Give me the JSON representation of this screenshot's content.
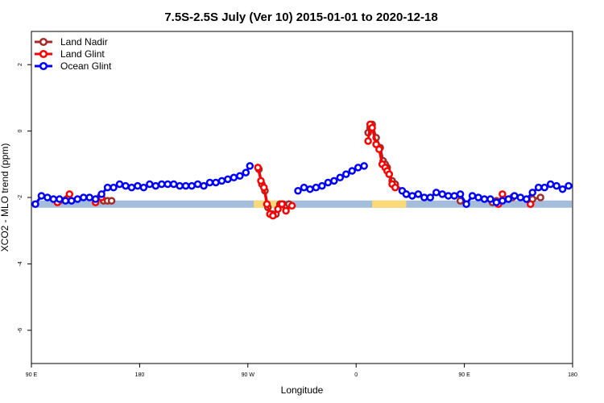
{
  "chart_data": {
    "type": "line",
    "title": "7.5S-2.5S July (Ver 10)   2015-01-01 to 2020-12-18",
    "xlabel": "Longitude",
    "ylabel": "XCO2 - MLO trend (ppm)",
    "xlim": [
      -90,
      180
    ],
    "ylim": [
      -7,
      3
    ],
    "x_ticks": [
      {
        "value": -90,
        "label": "90 E"
      },
      {
        "value": -36,
        "label": "180"
      },
      {
        "value": 18,
        "label": "90 W"
      },
      {
        "value": 72,
        "label": "0"
      },
      {
        "value": 126,
        "label": "90 E"
      },
      {
        "value": 180,
        "label": "180"
      }
    ],
    "y_ticks": [
      {
        "value": 2,
        "label": "2"
      },
      {
        "value": 0,
        "label": "0"
      },
      {
        "value": -2,
        "label": "-2"
      },
      {
        "value": -4,
        "label": "-4"
      },
      {
        "value": -6,
        "label": "-6"
      }
    ],
    "legend": {
      "position": "top-left"
    },
    "surface_band": {
      "y": -2.2,
      "ocean_color": "#a3bddb",
      "land_color": "#fcd977",
      "land_ranges": [
        [
          21,
          35
        ],
        [
          80,
          97
        ]
      ]
    },
    "series": [
      {
        "name": "Land Nadir",
        "color": "#a52a2a",
        "x": [
          -76,
          -56,
          -54,
          -52,
          -50,
          23.5,
          25,
          26.5,
          28,
          30,
          32,
          34,
          35.5,
          37,
          38.5,
          78,
          79,
          80,
          82,
          84,
          85.5,
          86.5,
          87.5,
          88.5,
          90,
          91.5,
          97,
          124,
          140,
          142,
          146,
          150,
          160,
          164
        ],
        "y": [
          -2.1,
          -2.0,
          -2.1,
          -2.1,
          -2.1,
          -1.15,
          -1.6,
          -1.8,
          -2.3,
          -2.5,
          -2.5,
          -2.2,
          -2.2,
          -2.3,
          -2.2,
          -0.05,
          0.1,
          0.2,
          -0.2,
          -0.5,
          -0.9,
          -1.0,
          -1.1,
          -1.3,
          -1.5,
          -1.6,
          -1.9,
          -2.1,
          -2.15,
          -2.1,
          -2.05,
          -2.0,
          -2.05,
          -2.0
        ]
      },
      {
        "name": "Land Glint",
        "color": "#ff0000",
        "x": [
          -77,
          -71,
          -58,
          -55,
          23,
          24.5,
          26,
          27.5,
          29,
          30.5,
          33,
          35,
          37,
          40,
          78,
          79,
          80,
          82,
          83.5,
          85,
          86.5,
          87.5,
          88.5,
          90,
          91.5,
          143,
          145,
          159
        ],
        "y": [
          -2.15,
          -1.9,
          -2.15,
          -2.0,
          -1.1,
          -1.5,
          -1.7,
          -2.2,
          -2.5,
          -2.55,
          -2.35,
          -2.2,
          -2.4,
          -2.25,
          -0.3,
          0.2,
          0.1,
          -0.4,
          -0.55,
          -1.0,
          -1.1,
          -1.2,
          -1.3,
          -1.6,
          -1.7,
          -2.2,
          -1.9,
          -2.2
        ]
      },
      {
        "name": "Ocean Glint",
        "color": "#0000ff",
        "x": [
          -88,
          -85,
          -82,
          -79,
          -76,
          -73,
          -70,
          -67,
          -64,
          -61,
          -58,
          -55,
          -52,
          -49,
          -46,
          -43,
          -40,
          -37,
          -34,
          -31,
          -28,
          -25,
          -22,
          -19,
          -16,
          -13,
          -10,
          -7,
          -4,
          -1,
          2,
          5,
          8,
          11,
          14,
          17,
          19,
          43,
          46,
          49,
          52,
          55,
          58,
          61,
          64,
          67,
          70,
          73,
          76,
          95,
          97,
          100,
          103,
          106,
          109,
          112,
          115,
          118,
          121,
          124,
          127,
          130,
          133,
          136,
          139,
          142,
          145,
          148,
          151,
          154,
          157,
          160,
          163,
          166,
          169,
          172,
          175,
          178
        ],
        "y": [
          -2.2,
          -1.95,
          -2.0,
          -2.05,
          -2.05,
          -2.1,
          -2.1,
          -2.05,
          -2.0,
          -2.0,
          -2.05,
          -1.9,
          -1.7,
          -1.7,
          -1.6,
          -1.65,
          -1.7,
          -1.65,
          -1.7,
          -1.6,
          -1.65,
          -1.6,
          -1.6,
          -1.6,
          -1.65,
          -1.65,
          -1.65,
          -1.6,
          -1.65,
          -1.55,
          -1.55,
          -1.5,
          -1.45,
          -1.4,
          -1.35,
          -1.25,
          -1.05,
          -1.8,
          -1.7,
          -1.75,
          -1.7,
          -1.65,
          -1.55,
          -1.5,
          -1.4,
          -1.3,
          -1.2,
          -1.1,
          -1.05,
          -1.8,
          -1.9,
          -1.95,
          -1.9,
          -2.0,
          -2.0,
          -1.85,
          -1.9,
          -1.95,
          -1.95,
          -1.9,
          -2.2,
          -1.95,
          -2.0,
          -2.05,
          -2.05,
          -2.15,
          -2.1,
          -2.05,
          -1.95,
          -2.0,
          -2.05,
          -1.85,
          -1.7,
          -1.7,
          -1.6,
          -1.65,
          -1.75,
          -1.65
        ]
      }
    ]
  }
}
